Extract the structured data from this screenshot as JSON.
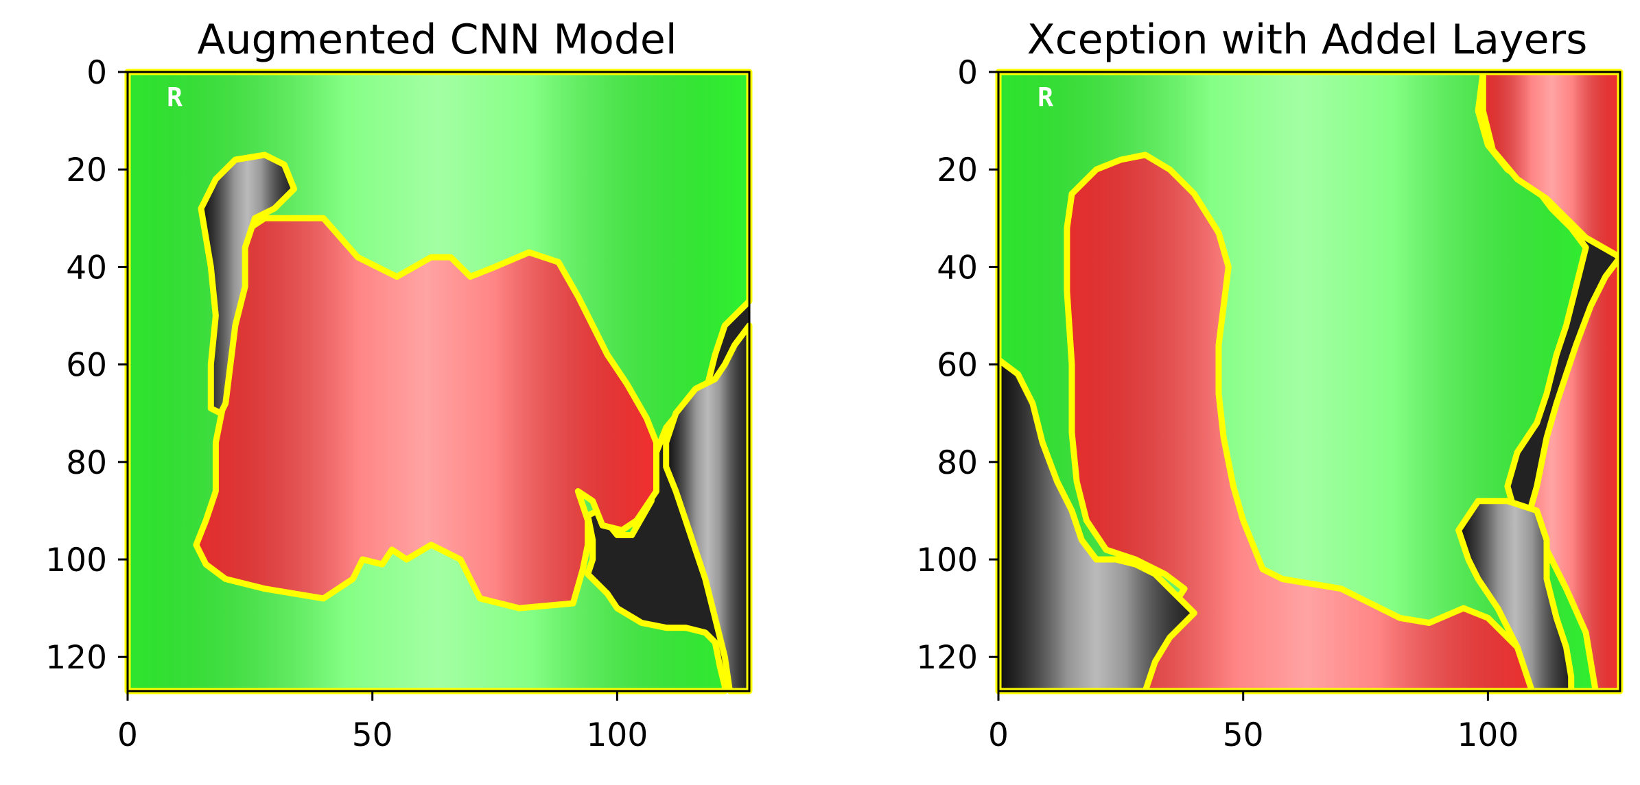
{
  "chart_data": [
    {
      "type": "heatmap",
      "title": "Augmented CNN Model",
      "xlim": [
        0,
        127
      ],
      "ylim": [
        127,
        0
      ],
      "xticks": [
        0,
        50,
        100
      ],
      "yticks": [
        0,
        20,
        40,
        60,
        80,
        100,
        120
      ],
      "grid": false,
      "image_corner_mark": "R",
      "colors": {
        "positive": "#33ff33",
        "negative": "#ff3333",
        "boundary": "#ffff00",
        "background": "#222222"
      },
      "regions": [
        {
          "role": "positive",
          "points": [
            [
              0,
              0
            ],
            [
              127,
              0
            ],
            [
              127,
              47
            ],
            [
              122,
              52
            ],
            [
              120,
              58
            ],
            [
              118,
              66
            ],
            [
              114,
              68
            ],
            [
              110,
              73
            ],
            [
              108,
              78
            ],
            [
              107,
              88
            ],
            [
              103,
              95
            ],
            [
              100,
              95
            ],
            [
              96,
              90
            ],
            [
              94,
              91
            ],
            [
              95,
              96
            ],
            [
              95,
              100
            ],
            [
              94,
              103
            ],
            [
              98,
              107
            ],
            [
              100,
              110
            ],
            [
              105,
              113
            ],
            [
              110,
              114
            ],
            [
              114,
              114
            ],
            [
              118,
              115
            ],
            [
              120,
              117
            ],
            [
              121,
              122
            ],
            [
              122,
              126
            ],
            [
              122,
              127
            ],
            [
              0,
              127
            ]
          ]
        },
        {
          "role": "negative",
          "points": [
            [
              22,
              34
            ],
            [
              28,
              30
            ],
            [
              40,
              30
            ],
            [
              47,
              38
            ],
            [
              55,
              42
            ],
            [
              62,
              38
            ],
            [
              66,
              38
            ],
            [
              70,
              42
            ],
            [
              75,
              40
            ],
            [
              82,
              37
            ],
            [
              88,
              39
            ],
            [
              92,
              46
            ],
            [
              95,
              52
            ],
            [
              98,
              58
            ],
            [
              102,
              64
            ],
            [
              106,
              71
            ],
            [
              108,
              76
            ],
            [
              108,
              86
            ],
            [
              104,
              92
            ],
            [
              101,
              94
            ],
            [
              97,
              93
            ],
            [
              95,
              88
            ],
            [
              92,
              86
            ],
            [
              94,
              92
            ],
            [
              94,
              97
            ],
            [
              93,
              102
            ],
            [
              91,
              109
            ],
            [
              80,
              110
            ],
            [
              72,
              108
            ],
            [
              68,
              100
            ],
            [
              62,
              97
            ],
            [
              57,
              100
            ],
            [
              54,
              98
            ],
            [
              52,
              101
            ],
            [
              48,
              100
            ],
            [
              46,
              104
            ],
            [
              40,
              108
            ],
            [
              34,
              107
            ],
            [
              28,
              106
            ],
            [
              20,
              104
            ],
            [
              16,
              101
            ],
            [
              14,
              97
            ],
            [
              16,
              92
            ],
            [
              18,
              86
            ],
            [
              18,
              76
            ],
            [
              20,
              66
            ],
            [
              21,
              55
            ],
            [
              22,
              45
            ]
          ]
        },
        {
          "role": "other",
          "points": [
            [
              18,
              22
            ],
            [
              22,
              18
            ],
            [
              28,
              17
            ],
            [
              32,
              19
            ],
            [
              34,
              24
            ],
            [
              30,
              28
            ],
            [
              26,
              30
            ],
            [
              24,
              36
            ],
            [
              24,
              44
            ],
            [
              22,
              52
            ],
            [
              21,
              60
            ],
            [
              20,
              68
            ],
            [
              19,
              70
            ],
            [
              17,
              69
            ],
            [
              17,
              60
            ],
            [
              18,
              50
            ],
            [
              17,
              40
            ],
            [
              16,
              34
            ],
            [
              15,
              28
            ]
          ]
        },
        {
          "role": "other",
          "points": [
            [
              110,
              76
            ],
            [
              112,
              70
            ],
            [
              116,
              65
            ],
            [
              120,
              63
            ],
            [
              122,
              60
            ],
            [
              124,
              56
            ],
            [
              127,
              52
            ],
            [
              127,
              127
            ],
            [
              123,
              127
            ],
            [
              122,
              120
            ],
            [
              120,
              112
            ],
            [
              118,
              104
            ],
            [
              116,
              98
            ],
            [
              114,
              92
            ],
            [
              112,
              86
            ],
            [
              110,
              81
            ]
          ]
        }
      ]
    },
    {
      "type": "heatmap",
      "title": "Xception with Addel Layers",
      "xlim": [
        0,
        127
      ],
      "ylim": [
        127,
        0
      ],
      "xticks": [
        0,
        50,
        100
      ],
      "yticks": [
        0,
        20,
        40,
        60,
        80,
        100,
        120
      ],
      "grid": false,
      "image_corner_mark": "R",
      "colors": {
        "positive": "#33ff33",
        "negative": "#ff3333",
        "boundary": "#ffff00",
        "background": "#222222"
      },
      "regions": [
        {
          "role": "positive",
          "points": [
            [
              0,
              0
            ],
            [
              99,
              0
            ],
            [
              98,
              8
            ],
            [
              100,
              15
            ],
            [
              104,
              20
            ],
            [
              110,
              24
            ],
            [
              113,
              28
            ],
            [
              117,
              32
            ],
            [
              120,
              36
            ],
            [
              118,
              44
            ],
            [
              116,
              52
            ],
            [
              114,
              58
            ],
            [
              112,
              66
            ],
            [
              110,
              72
            ],
            [
              106,
              78
            ],
            [
              104,
              85
            ],
            [
              106,
              92
            ],
            [
              110,
              95
            ],
            [
              114,
              98
            ],
            [
              116,
              103
            ],
            [
              120,
              110
            ],
            [
              122,
              114
            ],
            [
              124,
              118
            ],
            [
              124,
              127
            ],
            [
              0,
              127
            ]
          ]
        },
        {
          "role": "negative",
          "points": [
            [
              99,
              0
            ],
            [
              127,
              0
            ],
            [
              127,
              127
            ],
            [
              122,
              127
            ],
            [
              120,
              115
            ],
            [
              116,
              106
            ],
            [
              112,
              98
            ],
            [
              108,
              92
            ],
            [
              110,
              85
            ],
            [
              112,
              75
            ],
            [
              114,
              68
            ],
            [
              116,
              62
            ],
            [
              118,
              56
            ],
            [
              121,
              48
            ],
            [
              124,
              42
            ],
            [
              127,
              38
            ],
            [
              120,
              34
            ],
            [
              116,
              30
            ],
            [
              112,
              26
            ],
            [
              106,
              22
            ],
            [
              101,
              16
            ],
            [
              99,
              8
            ]
          ]
        },
        {
          "role": "negative",
          "points": [
            [
              15,
              25
            ],
            [
              20,
              20
            ],
            [
              25,
              18
            ],
            [
              30,
              17
            ],
            [
              35,
              20
            ],
            [
              40,
              25
            ],
            [
              45,
              33
            ],
            [
              47,
              40
            ],
            [
              46,
              48
            ],
            [
              45,
              56
            ],
            [
              45,
              66
            ],
            [
              46,
              75
            ],
            [
              48,
              85
            ],
            [
              50,
              92
            ],
            [
              52,
              97
            ],
            [
              54,
              102
            ],
            [
              58,
              104
            ],
            [
              64,
              105
            ],
            [
              70,
              106
            ],
            [
              76,
              109
            ],
            [
              82,
              112
            ],
            [
              88,
              113
            ],
            [
              95,
              110
            ],
            [
              100,
              112
            ],
            [
              106,
              118
            ],
            [
              110,
              124
            ],
            [
              112,
              127
            ],
            [
              30,
              127
            ],
            [
              30,
              118
            ],
            [
              34,
              112
            ],
            [
              38,
              106
            ],
            [
              34,
              103
            ],
            [
              28,
              100
            ],
            [
              22,
              98
            ],
            [
              18,
              92
            ],
            [
              16,
              84
            ],
            [
              15,
              74
            ],
            [
              15,
              60
            ],
            [
              14,
              45
            ],
            [
              14,
              32
            ]
          ]
        },
        {
          "role": "other",
          "points": [
            [
              0,
              59
            ],
            [
              4,
              62
            ],
            [
              7,
              68
            ],
            [
              9,
              76
            ],
            [
              12,
              84
            ],
            [
              15,
              90
            ],
            [
              17,
              96
            ],
            [
              20,
              100
            ],
            [
              24,
              100
            ],
            [
              28,
              101
            ],
            [
              32,
              103
            ],
            [
              36,
              107
            ],
            [
              40,
              111
            ],
            [
              35,
              116
            ],
            [
              32,
              121
            ],
            [
              30,
              127
            ],
            [
              0,
              127
            ]
          ]
        },
        {
          "role": "other",
          "points": [
            [
              94,
              94
            ],
            [
              98,
              88
            ],
            [
              104,
              88
            ],
            [
              110,
              90
            ],
            [
              112,
              96
            ],
            [
              112,
              104
            ],
            [
              114,
              112
            ],
            [
              116,
              118
            ],
            [
              117,
              124
            ],
            [
              117,
              127
            ],
            [
              109,
              127
            ],
            [
              106,
              118
            ],
            [
              102,
              110
            ],
            [
              98,
              104
            ],
            [
              96,
              100
            ]
          ]
        }
      ]
    }
  ]
}
